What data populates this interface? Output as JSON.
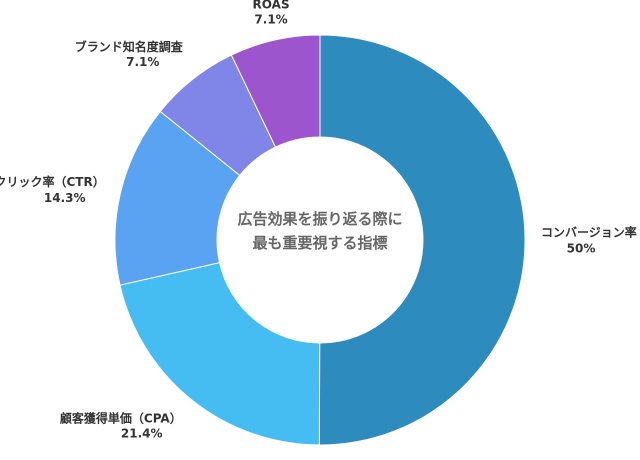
{
  "chart_data": {
    "type": "pie",
    "title": "",
    "center_label": {
      "line1": "広告効果を振り返る際に",
      "line2": "最も重要視する指標"
    },
    "slices": [
      {
        "name": "コンバージョン率",
        "value": 50,
        "value_label": "50%",
        "color": "#2e8bbd"
      },
      {
        "name": "顧客獲得単価（CPA）",
        "value": 21.4,
        "value_label": "21.4%",
        "color": "#45bdf3"
      },
      {
        "name": "クリック率（CTR）",
        "value": 14.3,
        "value_label": "14.3%",
        "color": "#5aa3f2"
      },
      {
        "name": "ブランド知名度調査",
        "value": 7.1,
        "value_label": "7.1%",
        "color": "#7f86e8"
      },
      {
        "name": "ROAS",
        "value": 7.1,
        "value_label": "7.1%",
        "color": "#9c55cc"
      }
    ]
  }
}
